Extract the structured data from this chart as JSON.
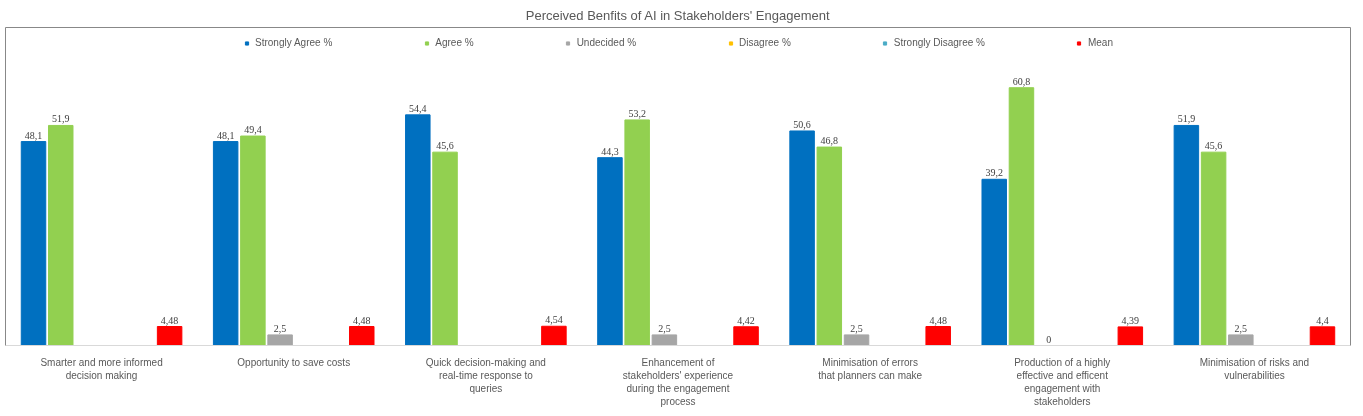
{
  "chart_data": {
    "type": "bar",
    "title": "Perceived Benfits of AI in Stakeholders' Engagement",
    "categories": [
      "Smarter and more informed decision making",
      "Opportunity to save costs",
      "Quick decision-making and real-time response to queries",
      "Enhancement of stakeholders' experience during the engagement process",
      "Minimisation of errors that planners can make",
      "Production of a highly effective and efficent engagement with stakeholders",
      "Minimisation of risks and vulnerabilities"
    ],
    "series": [
      {
        "name": "Strongly Agree %",
        "color": "#0070c0",
        "values": [
          48.1,
          48.1,
          54.4,
          44.3,
          50.6,
          39.2,
          51.9
        ],
        "value_labels": [
          "48,1",
          "48,1",
          "54,4",
          "44,3",
          "50,6",
          "39,2",
          "51,9"
        ]
      },
      {
        "name": "Agree %",
        "color": "#92d050",
        "values": [
          51.9,
          49.4,
          45.6,
          53.2,
          46.8,
          60.8,
          45.6
        ],
        "value_labels": [
          "51,9",
          "49,4",
          "45,6",
          "53,2",
          "46,8",
          "60,8",
          "45,6"
        ]
      },
      {
        "name": "Undecided %",
        "color": "#a6a6a6",
        "values": [
          null,
          2.5,
          null,
          2.5,
          2.5,
          0,
          2.5
        ],
        "value_labels": [
          null,
          "2,5",
          null,
          "2,5",
          "2,5",
          "0",
          "2,5"
        ]
      },
      {
        "name": "Disagree %",
        "color": "#ffc000",
        "values": [
          null,
          null,
          null,
          null,
          null,
          null,
          null
        ]
      },
      {
        "name": "Strongly Disagree %",
        "color": "#4bacc6",
        "values": [
          null,
          null,
          null,
          null,
          null,
          null,
          null
        ]
      },
      {
        "name": "Mean",
        "color": "#ff0000",
        "values": [
          4.48,
          4.48,
          4.54,
          4.42,
          4.48,
          4.39,
          4.4
        ],
        "value_labels": [
          "4,48",
          "4,48",
          "4,54",
          "4,42",
          "4,48",
          "4,39",
          "4,4"
        ]
      }
    ],
    "ylim": [
      0,
      75
    ],
    "tick_labels": "x",
    "grid": false,
    "legend": "top"
  }
}
